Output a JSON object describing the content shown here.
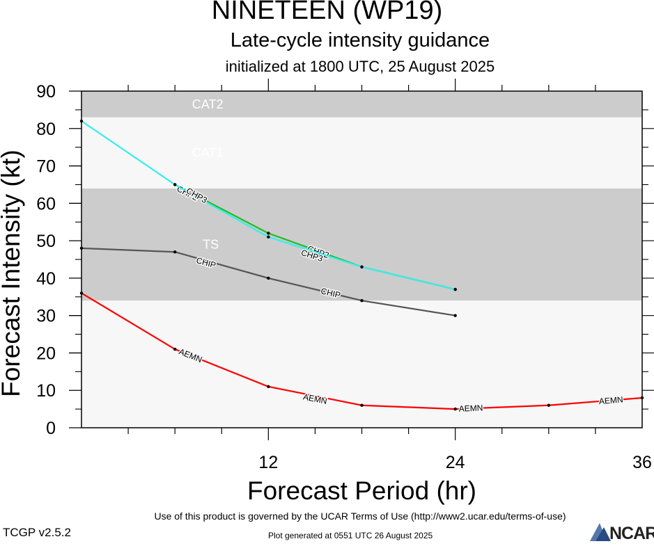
{
  "header": {
    "title": "NINETEEN (WP19)",
    "subtitle": "Late-cycle intensity guidance",
    "init": "initialized at 1800 UTC, 25 August 2025"
  },
  "footer": {
    "terms": "Use of this product is governed by the UCAR Terms of Use (http://www2.ucar.edu/terms-of-use)",
    "version": "TCGP v2.5.2",
    "generated": "Plot generated at 0551 UTC   26 August 2025",
    "logo_text": "NCAR"
  },
  "chart_data": {
    "type": "line",
    "title": "NINETEEN (WP19)",
    "xlabel": "Forecast Period (hr)",
    "ylabel": "Forecast Intensity (kt)",
    "xlim": [
      0,
      36
    ],
    "ylim": [
      0,
      90
    ],
    "xticks": [
      12,
      24,
      36
    ],
    "yticks": [
      0,
      10,
      20,
      30,
      40,
      50,
      60,
      70,
      80,
      90
    ],
    "bands": [
      {
        "label": "",
        "from": 0,
        "to": 34,
        "color": "#f7f7f7"
      },
      {
        "label": "TS",
        "from": 34,
        "to": 64,
        "color": "#cccccc"
      },
      {
        "label": "CAT1",
        "from": 64,
        "to": 83,
        "color": "#f7f7f7"
      },
      {
        "label": "CAT2",
        "from": 83,
        "to": 90,
        "color": "#cccccc"
      }
    ],
    "series": [
      {
        "name": "CHIP",
        "color": "#555555",
        "x": [
          0,
          6,
          12,
          18,
          24
        ],
        "y": [
          48,
          47,
          40,
          34,
          30
        ],
        "labels": [
          {
            "x": 8,
            "y": 44.1
          },
          {
            "x": 16,
            "y": 36
          }
        ]
      },
      {
        "name": "AEMN",
        "color": "#ff0000",
        "x": [
          0,
          6,
          12,
          18,
          24,
          30,
          36
        ],
        "y": [
          36,
          21,
          11,
          6,
          5,
          6,
          8
        ],
        "labels": [
          {
            "x": 7,
            "y": 19.3
          },
          {
            "x": 15,
            "y": 7.7
          },
          {
            "x": 25,
            "y": 5.2
          },
          {
            "x": 34,
            "y": 7.3
          }
        ]
      },
      {
        "name": "CHP2",
        "color": "#22bb22",
        "x": [
          6,
          12,
          18,
          24
        ],
        "y": [
          65,
          52,
          43,
          37
        ],
        "labels": [
          {
            "x": 6.8,
            "y": 62.7
          },
          {
            "x": 15.2,
            "y": 47
          }
        ]
      },
      {
        "name": "CHP3",
        "color": "#33eeee",
        "x": [
          0,
          6,
          12,
          18,
          24
        ],
        "y": [
          82,
          65,
          51,
          43,
          37
        ],
        "labels": [
          {
            "x": 7.4,
            "y": 62.1
          },
          {
            "x": 14.8,
            "y": 46
          }
        ]
      }
    ]
  }
}
